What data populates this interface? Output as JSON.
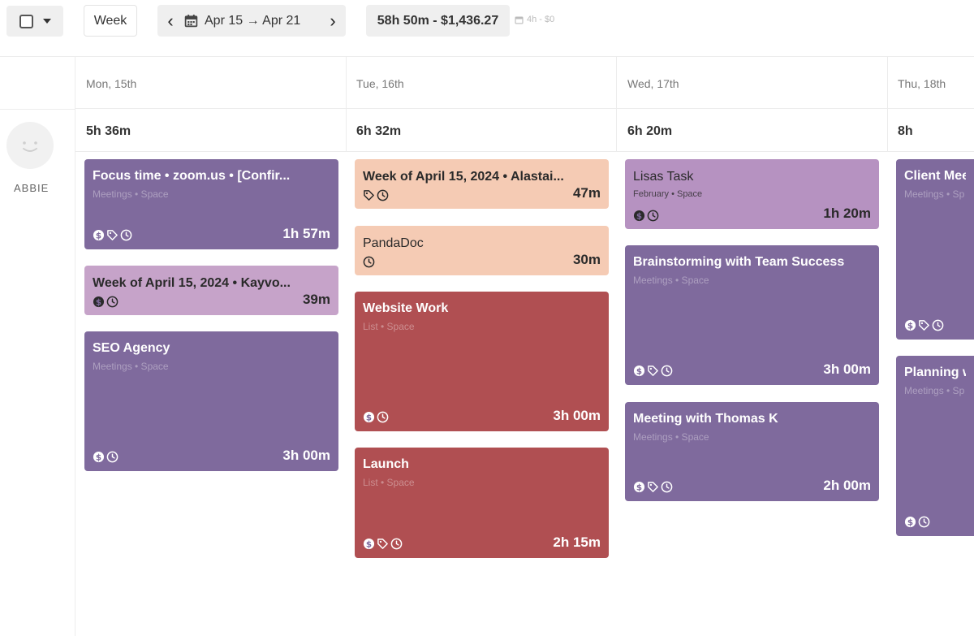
{
  "toolbar": {
    "view_label": "Week",
    "date_range": "Apr 15 → Apr 21",
    "total": "58h 50m - $1,436.27",
    "billable": "4h - $0"
  },
  "user": {
    "name": "ABBIE"
  },
  "days": [
    {
      "label": "Mon, 15th",
      "total": "5h 36m"
    },
    {
      "label": "Tue, 16th",
      "total": "6h 32m"
    },
    {
      "label": "Wed, 17th",
      "total": "6h 20m"
    },
    {
      "label": "Thu, 18th",
      "total": "8h"
    }
  ],
  "entries": {
    "mon": [
      {
        "title": "Focus time • zoom.us • [Confir...",
        "sub": "Meetings • Space",
        "duration": "1h 57m"
      },
      {
        "title": "Week of April 15, 2024 • Kayvo...",
        "duration": "39m"
      },
      {
        "title": "SEO Agency",
        "sub": "Meetings • Space",
        "duration": "3h 00m"
      }
    ],
    "tue": [
      {
        "title": "Week of April 15, 2024 • Alastai...",
        "duration": "47m"
      },
      {
        "title": "PandaDoc",
        "duration": "30m"
      },
      {
        "title": "Website Work",
        "sub": "List • Space",
        "duration": "3h 00m"
      },
      {
        "title": "Launch",
        "sub": "List • Space",
        "duration": "2h 15m"
      }
    ],
    "wed": [
      {
        "title": "Lisas Task",
        "sub": "February • Space",
        "duration": "1h 20m"
      },
      {
        "title": "Brainstorming with Team Success",
        "sub": "Meetings • Space",
        "duration": "3h 00m"
      },
      {
        "title": "Meeting with Thomas K",
        "sub": "Meetings • Space",
        "duration": "2h 00m"
      }
    ],
    "thu": [
      {
        "title": "Client Mee",
        "sub": "Meetings • Sp"
      },
      {
        "title": "Planning w",
        "sub": "Meetings • Sp"
      }
    ]
  },
  "colors": {
    "purple": "#7f6a9d",
    "mauve": "#c6a3c9",
    "peach": "#f5cbb4",
    "red": "#b04f52",
    "lavender": "#b692c1"
  }
}
